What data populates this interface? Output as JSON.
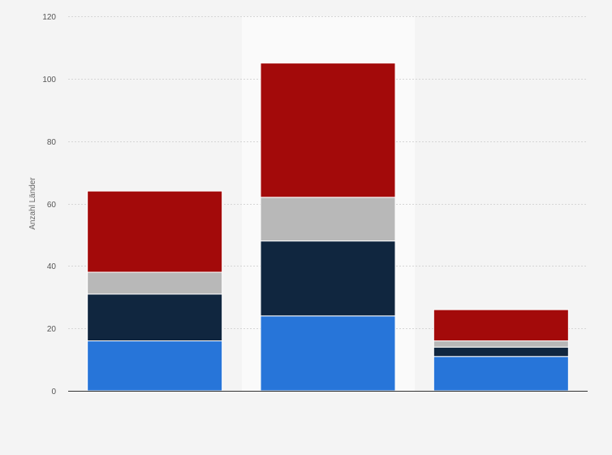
{
  "chart_data": {
    "type": "bar",
    "stacked": true,
    "title": "",
    "xlabel": "",
    "ylabel": "Anzahl Länder",
    "ylim": [
      0,
      120
    ],
    "yticks": [
      0,
      20,
      40,
      60,
      80,
      100,
      120
    ],
    "grid": true,
    "highlighted_category_index": 1,
    "categories": [
      "",
      "",
      ""
    ],
    "series": [
      {
        "color": "#2775d9",
        "values": [
          16,
          24,
          11
        ]
      },
      {
        "color": "#10263f",
        "values": [
          15,
          24,
          3
        ]
      },
      {
        "color": "#b8b8b8",
        "values": [
          7,
          14,
          2
        ]
      },
      {
        "color": "#a30a0a",
        "values": [
          26,
          43,
          10
        ]
      }
    ]
  }
}
